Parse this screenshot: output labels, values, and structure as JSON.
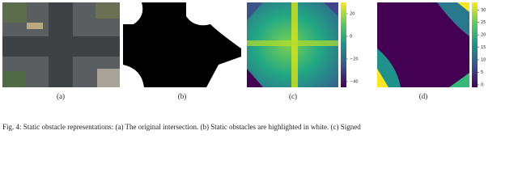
{
  "figure": {
    "panels": [
      {
        "label": "(a)"
      },
      {
        "label": "(b)"
      },
      {
        "label": "(c)",
        "colorbar": {
          "lim": [
            -45,
            30
          ],
          "ticks": [
            20,
            0,
            {
              "value": -20,
              "label": "−20"
            },
            {
              "value": -40,
              "label": "−40"
            }
          ]
        }
      },
      {
        "label": "(d)",
        "colorbar": {
          "lim": [
            -1,
            33
          ],
          "ticks": [
            0,
            5,
            10,
            15,
            20,
            25,
            30
          ]
        }
      }
    ],
    "caption": "Fig. 4: Static obstacle representations: (a) The original intersection. (b) Static obstacles are highlighted in white. (c) Signed"
  }
}
